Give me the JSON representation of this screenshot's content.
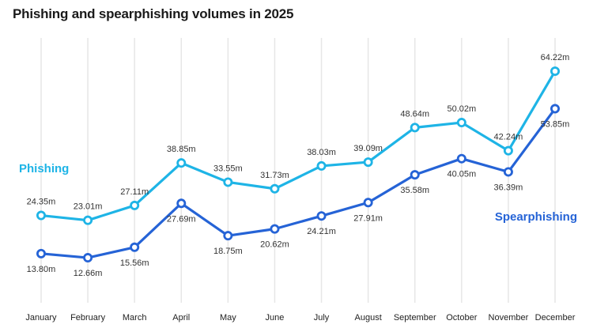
{
  "chart_data": {
    "type": "line",
    "title": "Phishing and spearphishing volumes in 2025",
    "xlabel": "",
    "ylabel": "",
    "ylim": [
      0,
      70
    ],
    "grid": "vertical",
    "value_suffix": "m",
    "categories": [
      "January",
      "February",
      "March",
      "April",
      "May",
      "June",
      "July",
      "August",
      "September",
      "October",
      "November",
      "December"
    ],
    "series": [
      {
        "name": "Phishing",
        "color": "#1eb4e6",
        "label_position": "above",
        "values": [
          24.35,
          23.01,
          27.11,
          38.85,
          33.55,
          31.73,
          38.03,
          39.09,
          48.64,
          50.02,
          42.24,
          64.22
        ],
        "labels": [
          "24.35m",
          "23.01m",
          "27.11m",
          "38.85m",
          "33.55m",
          "31.73m",
          "38.03m",
          "39.09m",
          "48.64m",
          "50.02m",
          "42.24m",
          "64.22m"
        ]
      },
      {
        "name": "Spearphishing",
        "color": "#2563d6",
        "label_position": "below",
        "values": [
          13.8,
          12.66,
          15.56,
          27.69,
          18.75,
          20.62,
          24.21,
          27.91,
          35.58,
          40.05,
          36.39,
          53.85
        ],
        "labels": [
          "13.80m",
          "12.66m",
          "15.56m",
          "27.69m",
          "18.75m",
          "20.62m",
          "24.21m",
          "27.91m",
          "35.58m",
          "40.05m",
          "36.39m",
          "53.85m"
        ]
      }
    ],
    "legend": [
      {
        "text": "Phishing",
        "placement": "left"
      },
      {
        "text": "Spearphishing",
        "placement": "right"
      }
    ]
  }
}
